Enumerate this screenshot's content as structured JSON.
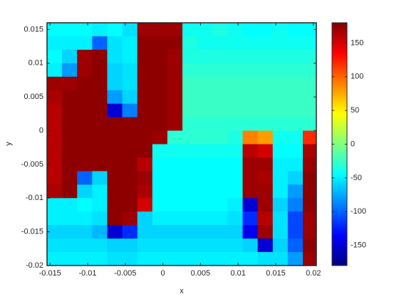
{
  "chart_data": {
    "type": "heatmap",
    "xlabel": "x",
    "ylabel": "y",
    "xlim": [
      -0.0154,
      0.0204
    ],
    "ylim": [
      -0.02,
      0.016
    ],
    "xticks": [
      -0.015,
      -0.01,
      -0.005,
      0,
      0.005,
      0.01,
      0.015,
      0.02
    ],
    "yticks": [
      -0.02,
      -0.015,
      -0.01,
      -0.005,
      0,
      0.005,
      0.01,
      0.015
    ],
    "x": [
      -0.0144,
      -0.0124,
      -0.0104,
      -0.0084,
      -0.0064,
      -0.0044,
      -0.0024,
      -0.0004,
      0.0016,
      0.0036,
      0.0056,
      0.0076,
      0.0096,
      0.0116,
      0.0136,
      0.0156,
      0.0176,
      0.0196
    ],
    "y": [
      0.015,
      0.013,
      0.011,
      0.009,
      0.007,
      0.005,
      0.003,
      0.001,
      -0.001,
      -0.003,
      -0.005,
      -0.007,
      -0.009,
      -0.011,
      -0.013,
      -0.015,
      -0.017,
      -0.019
    ],
    "values": [
      [
        -45,
        -45,
        -45,
        -50,
        -45,
        -55,
        170,
        170,
        170,
        -40,
        -40,
        -35,
        -40,
        -45,
        -45,
        -40,
        -45,
        -45
      ],
      [
        -50,
        -50,
        -50,
        -100,
        -55,
        -50,
        175,
        175,
        175,
        -35,
        -40,
        -40,
        -40,
        -40,
        -40,
        -40,
        -40,
        -40
      ],
      [
        -45,
        -60,
        170,
        175,
        -55,
        -50,
        175,
        175,
        170,
        -35,
        -35,
        -35,
        -35,
        -35,
        -35,
        -35,
        -35,
        -35
      ],
      [
        -50,
        -80,
        170,
        175,
        -60,
        -55,
        175,
        175,
        170,
        -30,
        -30,
        -30,
        -30,
        -30,
        -30,
        -30,
        -30,
        -30
      ],
      [
        170,
        170,
        175,
        175,
        -60,
        -55,
        175,
        175,
        170,
        -25,
        -25,
        -25,
        -25,
        -25,
        -25,
        -25,
        -25,
        -25
      ],
      [
        165,
        175,
        175,
        175,
        -80,
        -60,
        175,
        175,
        170,
        -25,
        -25,
        -25,
        -25,
        -25,
        -25,
        -25,
        -25,
        -25
      ],
      [
        160,
        175,
        175,
        175,
        -150,
        -90,
        175,
        175,
        170,
        -25,
        -25,
        -25,
        -25,
        -25,
        -25,
        -25,
        -25,
        -25
      ],
      [
        160,
        175,
        175,
        175,
        175,
        175,
        175,
        175,
        170,
        -30,
        -30,
        -30,
        -30,
        -30,
        -30,
        -30,
        -30,
        -30
      ],
      [
        160,
        175,
        175,
        175,
        175,
        175,
        175,
        170,
        -30,
        -30,
        -30,
        -30,
        -35,
        90,
        80,
        -40,
        -40,
        120
      ],
      [
        160,
        175,
        175,
        175,
        175,
        175,
        175,
        -40,
        -40,
        -40,
        -40,
        -40,
        -40,
        160,
        150,
        -45,
        -45,
        165
      ],
      [
        160,
        175,
        175,
        175,
        175,
        175,
        160,
        -45,
        -45,
        -45,
        -45,
        -45,
        -45,
        170,
        170,
        -50,
        -50,
        170
      ],
      [
        160,
        175,
        -100,
        -60,
        175,
        175,
        170,
        -45,
        -45,
        -45,
        -45,
        -45,
        -45,
        170,
        165,
        -50,
        -60,
        175
      ],
      [
        165,
        175,
        -60,
        -50,
        175,
        175,
        165,
        -45,
        -45,
        -45,
        -45,
        -45,
        -45,
        170,
        170,
        -50,
        -80,
        175
      ],
      [
        -50,
        -50,
        -45,
        -50,
        175,
        175,
        150,
        -45,
        -45,
        -45,
        -45,
        -45,
        -50,
        -150,
        170,
        -60,
        -90,
        175
      ],
      [
        -50,
        -50,
        -50,
        -55,
        175,
        170,
        -60,
        -50,
        -50,
        -50,
        -50,
        -50,
        -55,
        -120,
        160,
        -55,
        -110,
        170
      ],
      [
        -60,
        -60,
        -60,
        -70,
        -150,
        -120,
        -60,
        -60,
        -60,
        -60,
        -60,
        -60,
        -60,
        -140,
        170,
        -55,
        -110,
        170
      ],
      [
        -55,
        -55,
        -55,
        -55,
        -60,
        -60,
        -55,
        -55,
        -55,
        -55,
        -55,
        -55,
        -55,
        -60,
        -150,
        -60,
        -100,
        175
      ],
      [
        -50,
        -50,
        -50,
        -50,
        -55,
        -55,
        -50,
        -50,
        -50,
        -50,
        -50,
        -50,
        -50,
        -50,
        -55,
        -55,
        -80,
        170
      ]
    ],
    "colormap": "jet",
    "clim": [
      -180,
      180
    ],
    "cticks": [
      -150,
      -100,
      -50,
      0,
      50,
      100,
      150
    ]
  }
}
